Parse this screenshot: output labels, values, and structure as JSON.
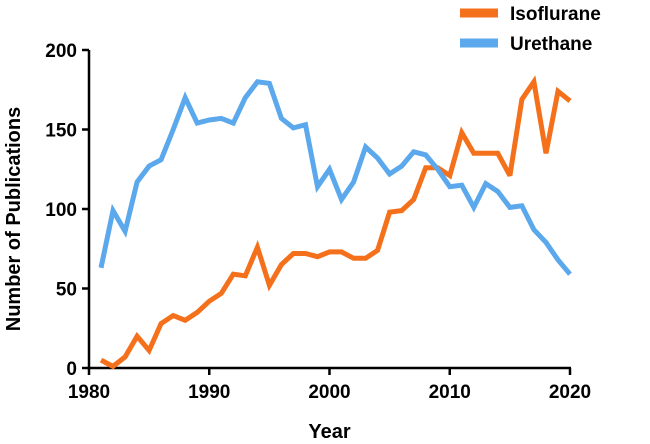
{
  "chart_data": {
    "type": "line",
    "xlabel": "Year",
    "ylabel": "Number of Publications",
    "xlim": [
      1980,
      2020
    ],
    "ylim": [
      0,
      200
    ],
    "xticks": [
      "1980",
      "1990",
      "2000",
      "2010",
      "2020"
    ],
    "yticks": [
      "0",
      "50",
      "100",
      "150",
      "200"
    ],
    "legend_position": "top-right",
    "grid": false,
    "x": [
      1981,
      1982,
      1983,
      1984,
      1985,
      1986,
      1987,
      1988,
      1989,
      1990,
      1991,
      1992,
      1993,
      1994,
      1995,
      1996,
      1997,
      1998,
      1999,
      2000,
      2001,
      2002,
      2003,
      2004,
      2005,
      2006,
      2007,
      2008,
      2009,
      2010,
      2011,
      2012,
      2013,
      2014,
      2015,
      2016,
      2017,
      2018,
      2019,
      2020
    ],
    "series": [
      {
        "name": "Isoflurane",
        "color": "#F5701B",
        "values": [
          5,
          1,
          7,
          20,
          11,
          28,
          33,
          30,
          35,
          42,
          47,
          59,
          58,
          76,
          52,
          65,
          72,
          72,
          70,
          73,
          73,
          69,
          69,
          74,
          98,
          99,
          106,
          126,
          126,
          121,
          148,
          135,
          135,
          135,
          121,
          169,
          180,
          135,
          174,
          168
        ]
      },
      {
        "name": "Urethane",
        "color": "#5BA8EC",
        "values": [
          63,
          99,
          86,
          117,
          127,
          131,
          150,
          170,
          154,
          156,
          157,
          154,
          170,
          180,
          179,
          157,
          151,
          153,
          114,
          125,
          106,
          117,
          139,
          132,
          122,
          127,
          136,
          134,
          125,
          114,
          115,
          101,
          116,
          111,
          101,
          102,
          87,
          79,
          68,
          59
        ]
      }
    ]
  }
}
